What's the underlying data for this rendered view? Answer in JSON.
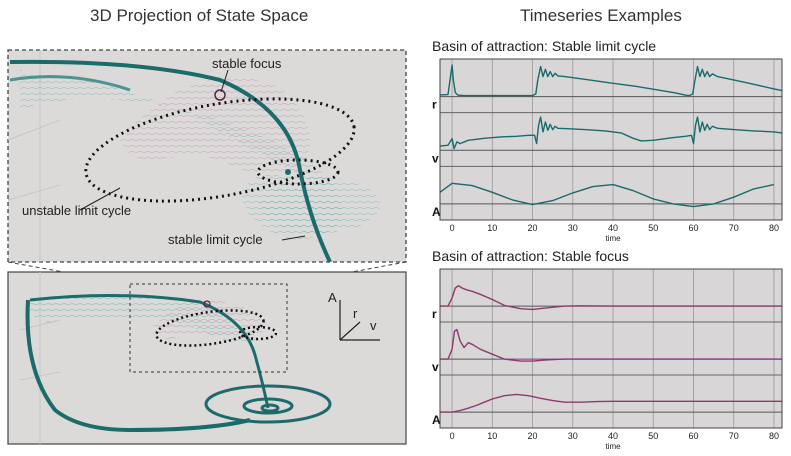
{
  "left": {
    "title": "3D Projection of State Space",
    "annotations": {
      "stable_focus": "stable focus",
      "unstable_limit_cycle": "unstable limit cycle",
      "stable_limit_cycle": "stable limit cycle"
    },
    "axes_labels": {
      "a": "A",
      "r": "r",
      "v": "v"
    }
  },
  "right": {
    "title": "Timeseries Examples"
  },
  "colors": {
    "teal": "#1b6b6b",
    "teal_light": "#4aa3a3",
    "magenta": "#8e3a6e",
    "magenta_light": "#b77aa0",
    "panel_bg": "#d8d6d6",
    "grid": "#888888"
  },
  "chart_data": [
    {
      "type": "line",
      "title": "Basin of attraction: Stable limit cycle",
      "xlabel": "time",
      "x_ticks": [
        0,
        10,
        20,
        30,
        40,
        50,
        60,
        70,
        80
      ],
      "xlim": [
        -3,
        82
      ],
      "rows": [
        "r",
        "v",
        "A"
      ],
      "series": [
        {
          "row": "r",
          "x": [
            -3,
            -1,
            0,
            0.3,
            0.8,
            1.5,
            3,
            8,
            15,
            20,
            20.8,
            21.3,
            22,
            22.6,
            23.2,
            23.8,
            24.4,
            25,
            25.6,
            26.3,
            28,
            33,
            40,
            45,
            50,
            55,
            57,
            58,
            59,
            59.8,
            60.3,
            61,
            61.6,
            62.2,
            62.8,
            63.4,
            64,
            64.7,
            66,
            70,
            75,
            80,
            82
          ],
          "y": [
            0.05,
            0.06,
            0.95,
            0.5,
            0.12,
            0.04,
            0.03,
            0.03,
            0.03,
            0.03,
            0.08,
            0.5,
            0.9,
            0.6,
            0.82,
            0.6,
            0.75,
            0.6,
            0.7,
            0.62,
            0.6,
            0.52,
            0.4,
            0.32,
            0.22,
            0.12,
            0.07,
            0.04,
            0.03,
            0.08,
            0.45,
            0.9,
            0.6,
            0.82,
            0.6,
            0.75,
            0.6,
            0.68,
            0.6,
            0.5,
            0.37,
            0.23,
            0.18
          ]
        },
        {
          "row": "v",
          "x": [
            -3,
            -1,
            0,
            0.5,
            1.2,
            2,
            4,
            8,
            12,
            16,
            19,
            20.5,
            21,
            21.5,
            22,
            22.6,
            23.2,
            23.8,
            24.4,
            25,
            25.6,
            26.3,
            28,
            33,
            38,
            42,
            45,
            47,
            50,
            55,
            58,
            59.5,
            60,
            60.5,
            61,
            61.6,
            62.2,
            62.8,
            63.4,
            64,
            64.7,
            66,
            70,
            75,
            80,
            82
          ],
          "y": [
            0.12,
            0.15,
            0.35,
            0.05,
            0.25,
            0.2,
            0.3,
            0.36,
            0.4,
            0.42,
            0.45,
            0.45,
            0.2,
            0.75,
            1.0,
            0.55,
            0.85,
            0.6,
            0.78,
            0.62,
            0.72,
            0.66,
            0.65,
            0.62,
            0.58,
            0.52,
            0.36,
            0.28,
            0.3,
            0.38,
            0.42,
            0.45,
            0.2,
            0.75,
            1.0,
            0.55,
            0.85,
            0.6,
            0.78,
            0.62,
            0.72,
            0.66,
            0.62,
            0.58,
            0.55,
            0.52
          ]
        },
        {
          "row": "A",
          "x": [
            -3,
            0,
            5,
            10,
            15,
            20,
            25,
            30,
            35,
            40,
            45,
            50,
            55,
            60,
            65,
            70,
            75,
            80
          ],
          "y": [
            0.35,
            0.62,
            0.55,
            0.35,
            0.12,
            -0.02,
            0.1,
            0.33,
            0.52,
            0.58,
            0.4,
            0.15,
            0.0,
            -0.08,
            0.0,
            0.2,
            0.45,
            0.58
          ]
        }
      ]
    },
    {
      "type": "line",
      "title": "Basin of attraction: Stable focus",
      "xlabel": "time",
      "x_ticks": [
        0,
        10,
        20,
        30,
        40,
        50,
        60,
        70,
        80
      ],
      "xlim": [
        -3,
        82
      ],
      "rows": [
        "r",
        "v",
        "A"
      ],
      "series": [
        {
          "row": "r",
          "x": [
            -3,
            -1,
            0,
            0.8,
            1.6,
            2.5,
            3.5,
            5,
            7,
            10,
            13,
            17,
            20,
            24,
            28,
            32,
            40,
            50,
            60,
            70,
            80,
            82
          ],
          "y": [
            0.0,
            0.0,
            0.25,
            0.55,
            0.62,
            0.55,
            0.5,
            0.45,
            0.36,
            0.2,
            0.02,
            -0.08,
            -0.1,
            -0.05,
            0.0,
            0.01,
            0.0,
            0.0,
            0.0,
            0.0,
            0.0,
            0.0
          ]
        },
        {
          "row": "v",
          "x": [
            -3,
            -1,
            0,
            0.6,
            1.2,
            2,
            3,
            4,
            5,
            7,
            10,
            13,
            17,
            20,
            24,
            28,
            32,
            40,
            50,
            60,
            70,
            80,
            82
          ],
          "y": [
            0.0,
            0.0,
            0.3,
            0.85,
            0.9,
            0.55,
            0.35,
            0.5,
            0.45,
            0.3,
            0.15,
            0.0,
            -0.06,
            -0.06,
            -0.02,
            0.0,
            0.0,
            0.0,
            0.0,
            0.0,
            0.0,
            0.0,
            0.0
          ]
        },
        {
          "row": "A",
          "x": [
            -3,
            0,
            2,
            4,
            6,
            8,
            10,
            13,
            16,
            19,
            22,
            25,
            28,
            32,
            36,
            40,
            50,
            60,
            70,
            80,
            82
          ],
          "y": [
            0.0,
            0.0,
            0.05,
            0.12,
            0.2,
            0.3,
            0.4,
            0.5,
            0.54,
            0.5,
            0.42,
            0.35,
            0.3,
            0.3,
            0.32,
            0.33,
            0.33,
            0.33,
            0.33,
            0.33,
            0.33
          ]
        }
      ]
    }
  ]
}
